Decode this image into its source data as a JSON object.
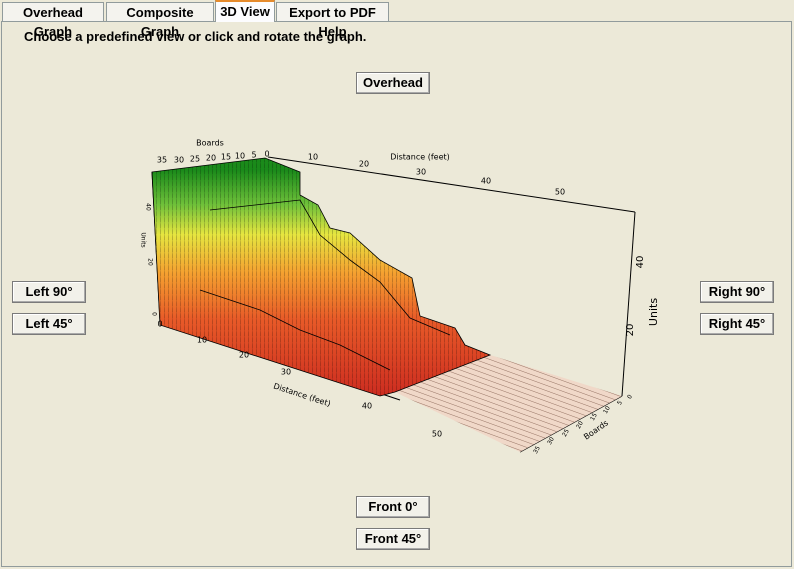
{
  "tabs": [
    "Overhead Graph",
    "Composite Graph",
    "3D View",
    "Export to PDF Help"
  ],
  "instruction": "Choose a predefined view or click and rotate the graph.",
  "buttons": {
    "overhead": "Overhead",
    "left_90": "Left 90°",
    "left_45": "Left 45°",
    "right_90": "Right 90°",
    "right_45": "Right 45°",
    "front_0": "Front 0°",
    "front_45": "Front 45°"
  },
  "graph": {
    "back_boards_label": "Boards",
    "back_boards_ticks": [
      35,
      30,
      25,
      20,
      15,
      10,
      5,
      0
    ],
    "back_distance_label": "Distance (feet)",
    "back_distance_ticks": [
      10,
      20,
      30,
      40,
      50
    ],
    "right_units_label": "Units",
    "right_units_ticks": [
      20,
      40
    ],
    "left_units_label": "Units",
    "left_units_ticks": [
      40,
      20,
      0
    ],
    "front_distance_label": "Distance (feet)",
    "front_distance_ticks": [
      0,
      10,
      20,
      30,
      40,
      50
    ],
    "front_boards_label": "Boards",
    "front_boards_ticks": [
      0,
      5,
      10,
      15,
      20,
      25,
      30,
      35
    ]
  }
}
